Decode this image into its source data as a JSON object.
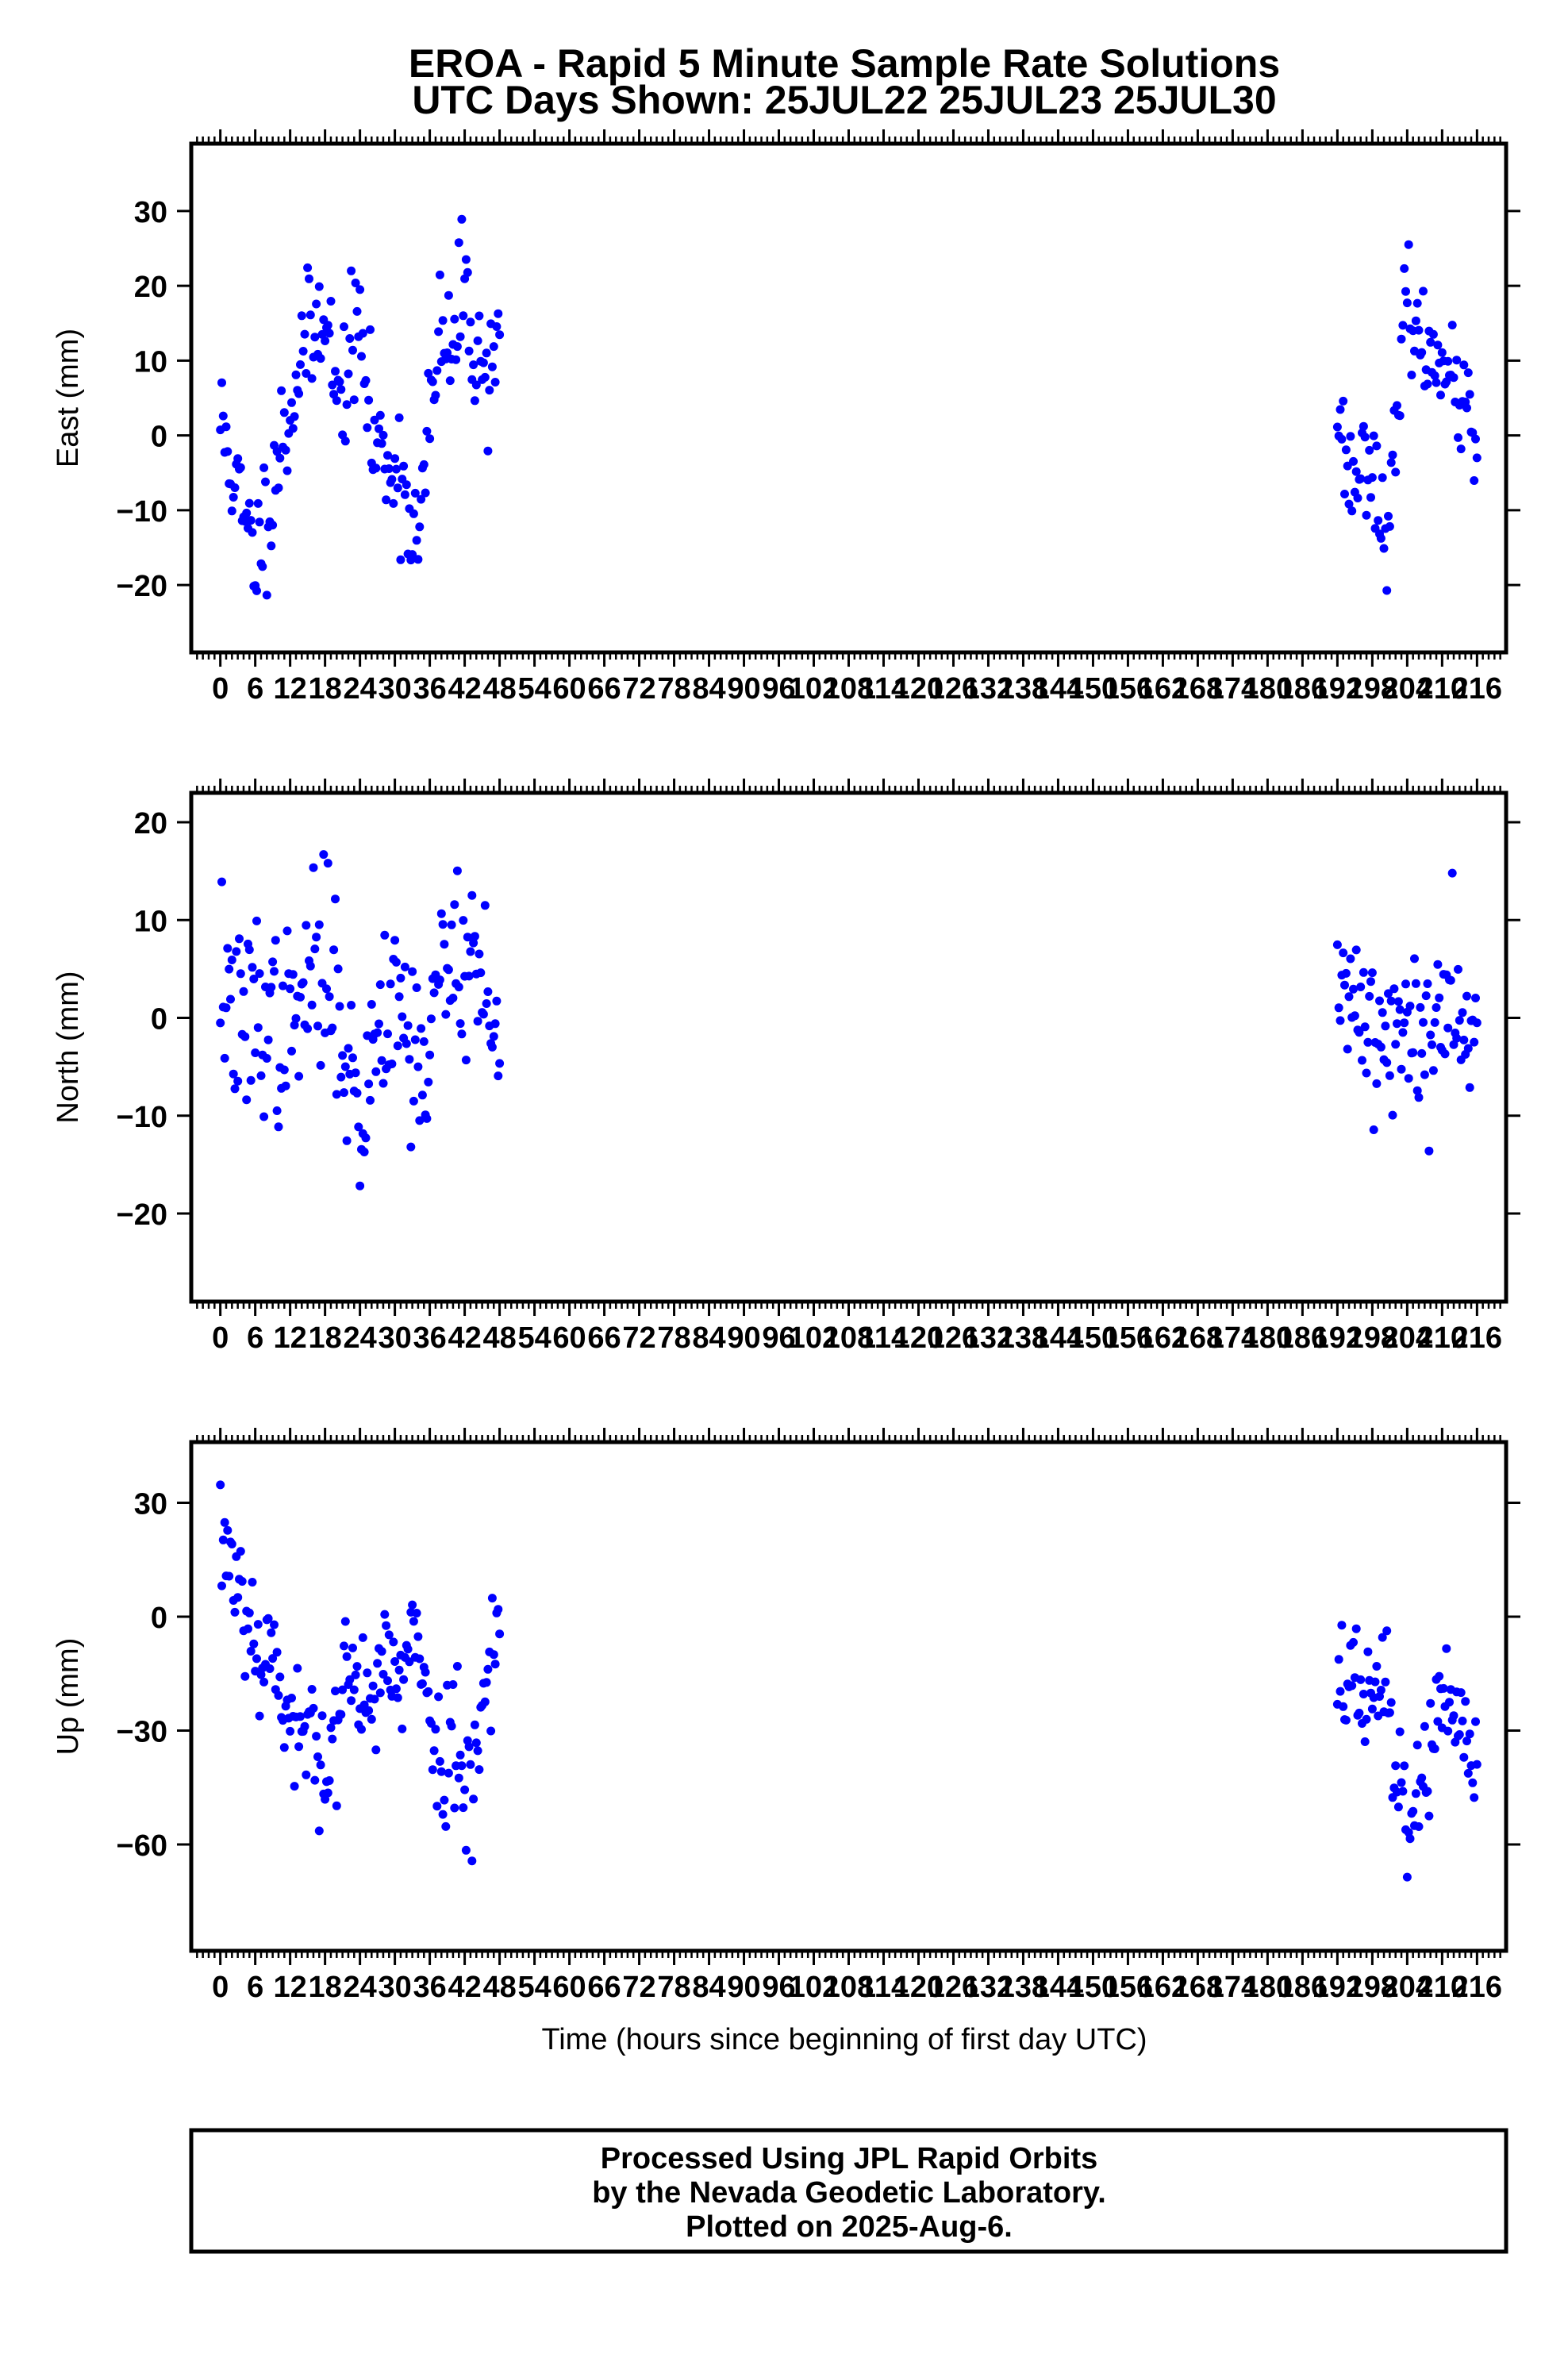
{
  "title_line1": "EROA - Rapid 5 Minute Sample Rate Solutions",
  "title_line2": "UTC Days Shown:  25JUL22 25JUL23 25JUL30",
  "xlabel": "Time (hours since beginning of first day UTC)",
  "footer": {
    "line1": "Processed Using JPL Rapid Orbits",
    "line2": "by the Nevada Geodetic Laboratory.",
    "line3": "Plotted on 2025-Aug-6."
  },
  "colors": {
    "points": "#0000ff",
    "axes": "#000000",
    "background": "#ffffff"
  },
  "chart_data": [
    {
      "type": "scatter",
      "ylabel": "East (mm)",
      "xlim": [
        -5,
        221
      ],
      "ylim": [
        -29,
        39
      ],
      "yticks": [
        -20,
        -10,
        0,
        10,
        20,
        30
      ],
      "xticks": [
        0,
        6,
        12,
        18,
        24,
        30,
        36,
        42,
        48,
        54,
        60,
        66,
        72,
        78,
        84,
        90,
        96,
        102,
        108,
        114,
        120,
        126,
        132,
        138,
        144,
        150,
        156,
        162,
        168,
        174,
        180,
        186,
        192,
        198,
        204,
        210,
        216
      ],
      "xtick_labels": [
        "0",
        "6",
        "12",
        "18",
        "24",
        "30",
        "36",
        "42",
        "48",
        "54",
        "60",
        "66",
        "72",
        "78",
        "84",
        "90",
        "96",
        "102",
        "108",
        "114",
        "120",
        "126",
        "132",
        "138",
        "144",
        "150",
        "156",
        "162",
        "168",
        "174",
        "180",
        "186",
        "192",
        "198",
        "204",
        "210",
        "216"
      ],
      "segments": [
        {
          "start": 0,
          "end": 48,
          "step": 0.25,
          "knots": [
            [
              0,
              2
            ],
            [
              2,
              -4
            ],
            [
              4,
              -12
            ],
            [
              6,
              -16
            ],
            [
              8,
              -10
            ],
            [
              10,
              -2
            ],
            [
              12,
              3
            ],
            [
              14,
              12
            ],
            [
              16,
              12
            ],
            [
              18,
              20
            ],
            [
              20,
              3
            ],
            [
              22,
              10
            ],
            [
              24,
              15
            ],
            [
              26,
              0
            ],
            [
              28,
              -3
            ],
            [
              30,
              -3
            ],
            [
              32,
              -8
            ],
            [
              34,
              -15
            ],
            [
              36,
              2
            ],
            [
              38,
              14
            ],
            [
              40,
              10
            ],
            [
              42,
              22
            ],
            [
              44,
              10
            ],
            [
              46,
              8
            ],
            [
              48,
              16
            ]
          ],
          "noise": 4.5,
          "seed": 11
        },
        {
          "start": 192,
          "end": 216,
          "step": 0.25,
          "knots": [
            [
              192,
              5
            ],
            [
              194,
              -6
            ],
            [
              196,
              -4
            ],
            [
              198,
              -2
            ],
            [
              200,
              -14
            ],
            [
              202,
              -3
            ],
            [
              204,
              20
            ],
            [
              206,
              12
            ],
            [
              208,
              10
            ],
            [
              210,
              13
            ],
            [
              212,
              5
            ],
            [
              214,
              4
            ],
            [
              216,
              -4
            ]
          ],
          "noise": 3.5,
          "seed": 23
        }
      ]
    },
    {
      "type": "scatter",
      "ylabel": "North (mm)",
      "xlim": [
        -5,
        221
      ],
      "ylim": [
        -29,
        23
      ],
      "yticks": [
        -20,
        -10,
        0,
        10,
        20
      ],
      "xticks": [
        0,
        6,
        12,
        18,
        24,
        30,
        36,
        42,
        48,
        54,
        60,
        66,
        72,
        78,
        84,
        90,
        96,
        102,
        108,
        114,
        120,
        126,
        132,
        138,
        144,
        150,
        156,
        162,
        168,
        174,
        180,
        186,
        192,
        198,
        204,
        210,
        216
      ],
      "xtick_labels": [
        "0",
        "6",
        "12",
        "18",
        "24",
        "30",
        "36",
        "42",
        "48",
        "54",
        "60",
        "66",
        "72",
        "78",
        "84",
        "90",
        "96",
        "102",
        "108",
        "114",
        "120",
        "126",
        "132",
        "138",
        "144",
        "150",
        "156",
        "162",
        "168",
        "174",
        "180",
        "186",
        "192",
        "198",
        "204",
        "210",
        "216"
      ],
      "segments": [
        {
          "start": 0,
          "end": 48,
          "step": 0.25,
          "knots": [
            [
              0,
              5
            ],
            [
              4,
              -3
            ],
            [
              6,
              2
            ],
            [
              8,
              0
            ],
            [
              12,
              -2
            ],
            [
              16,
              5
            ],
            [
              20,
              4
            ],
            [
              22,
              -5
            ],
            [
              24,
              -12
            ],
            [
              26,
              -4
            ],
            [
              28,
              2
            ],
            [
              30,
              4
            ],
            [
              34,
              -5
            ],
            [
              36,
              -3
            ],
            [
              38,
              5
            ],
            [
              42,
              8
            ],
            [
              46,
              2
            ],
            [
              48,
              -6
            ]
          ],
          "noise": 5,
          "seed": 37
        },
        {
          "start": 192,
          "end": 216,
          "step": 0.25,
          "knots": [
            [
              192,
              0
            ],
            [
              196,
              3
            ],
            [
              200,
              -4
            ],
            [
              204,
              0
            ],
            [
              206,
              -3
            ],
            [
              208,
              -2
            ],
            [
              210,
              3
            ],
            [
              212,
              4
            ],
            [
              216,
              0
            ]
          ],
          "noise": 4.5,
          "seed": 41
        }
      ]
    },
    {
      "type": "scatter",
      "ylabel": "Up (mm)",
      "xlim": [
        -5,
        221
      ],
      "ylim": [
        -88,
        46
      ],
      "yticks": [
        -60,
        -30,
        0,
        30
      ],
      "xticks": [
        0,
        6,
        12,
        18,
        24,
        30,
        36,
        42,
        48,
        54,
        60,
        66,
        72,
        78,
        84,
        90,
        96,
        102,
        108,
        114,
        120,
        126,
        132,
        138,
        144,
        150,
        156,
        162,
        168,
        174,
        180,
        186,
        192,
        198,
        204,
        210,
        216
      ],
      "xtick_labels": [
        "0",
        "6",
        "12",
        "18",
        "24",
        "30",
        "36",
        "42",
        "48",
        "54",
        "60",
        "66",
        "72",
        "78",
        "84",
        "90",
        "96",
        "102",
        "108",
        "114",
        "120",
        "126",
        "132",
        "138",
        "144",
        "150",
        "156",
        "162",
        "168",
        "174",
        "180",
        "186",
        "192",
        "198",
        "204",
        "210",
        "216"
      ],
      "segments": [
        {
          "start": 0,
          "end": 48,
          "step": 0.25,
          "knots": [
            [
              0,
              22
            ],
            [
              4,
              8
            ],
            [
              6,
              -10
            ],
            [
              8,
              -5
            ],
            [
              10,
              -15
            ],
            [
              12,
              -30
            ],
            [
              14,
              -35
            ],
            [
              16,
              -25
            ],
            [
              18,
              -40
            ],
            [
              20,
              -30
            ],
            [
              22,
              -15
            ],
            [
              24,
              -25
            ],
            [
              26,
              -20
            ],
            [
              28,
              -5
            ],
            [
              30,
              -20
            ],
            [
              32,
              -15
            ],
            [
              34,
              -5
            ],
            [
              36,
              -25
            ],
            [
              38,
              -40
            ],
            [
              40,
              -30
            ],
            [
              42,
              -45
            ],
            [
              44,
              -35
            ],
            [
              46,
              -10
            ],
            [
              48,
              0
            ]
          ],
          "noise": 9,
          "seed": 53
        },
        {
          "start": 192,
          "end": 216,
          "step": 0.25,
          "knots": [
            [
              192,
              -15
            ],
            [
              196,
              -20
            ],
            [
              198,
              -25
            ],
            [
              200,
              -15
            ],
            [
              202,
              -40
            ],
            [
              204,
              -55
            ],
            [
              206,
              -45
            ],
            [
              208,
              -35
            ],
            [
              210,
              -25
            ],
            [
              212,
              -35
            ],
            [
              214,
              -32
            ],
            [
              216,
              -35
            ]
          ],
          "noise": 8,
          "seed": 67
        }
      ]
    }
  ]
}
